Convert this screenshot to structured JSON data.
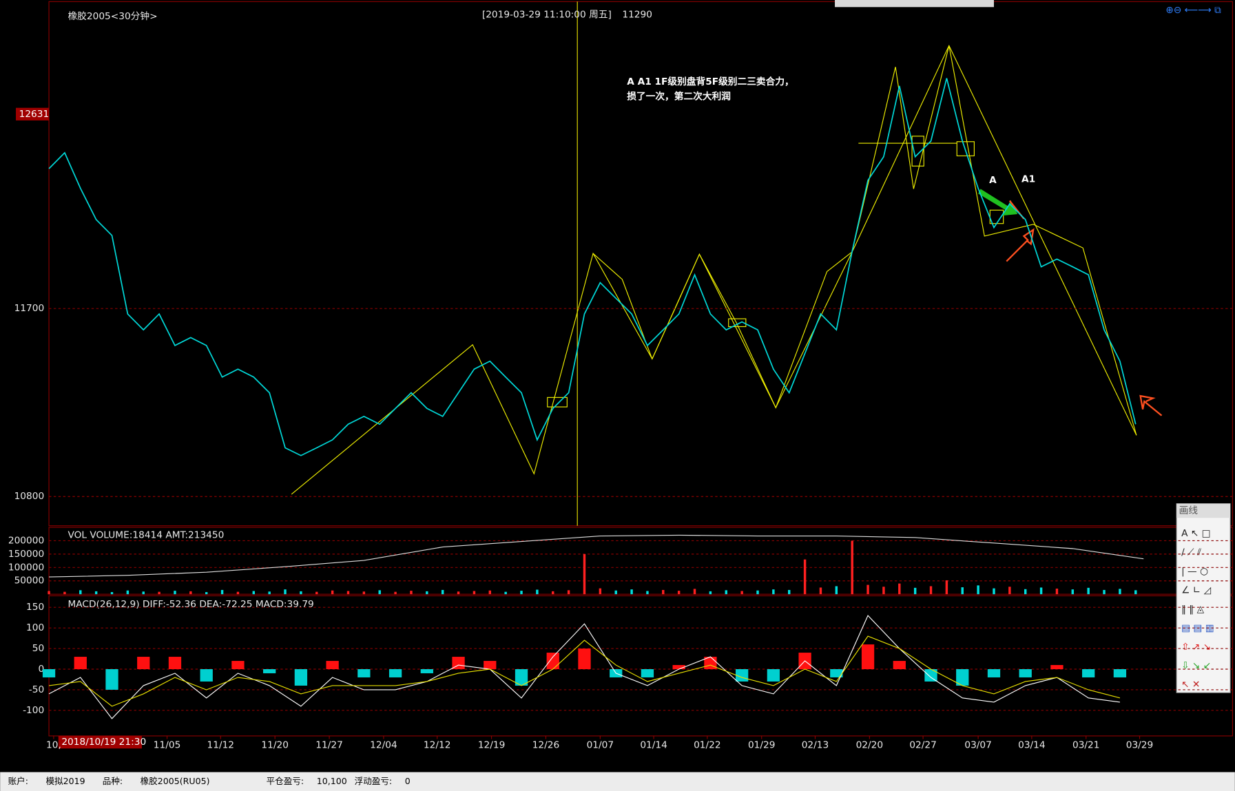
{
  "header": {
    "title": "橡胶2005<30分钟>",
    "cursor": "[2019-03-29  11:10:00 周五]",
    "cursor_price": "11290"
  },
  "annotation": {
    "lines": [
      "A A1 1F级别盘背5F级别二三卖合力，",
      "损了一次，第二次大利润"
    ],
    "labels": [
      "A",
      "A1"
    ]
  },
  "cursor_date": "2018/10/19 21:30",
  "toolbox": {
    "title": "画线"
  },
  "status_bar": {
    "items": [
      "账户:",
      "模拟2019",
      "品种:",
      "橡胶2005(RU05)",
      "平仓盈亏:",
      "10,100",
      "浮动盈亏:",
      "0"
    ]
  },
  "chart_data": [
    {
      "type": "line",
      "color": "#00d8d8",
      "ylim": [
        10660,
        13170
      ],
      "yticks": [
        10800,
        11700
      ],
      "xlim": [
        0,
        75.15
      ],
      "cursor_label": 12631,
      "values": [
        12370,
        12446,
        12276,
        12126,
        12050,
        11674,
        11598,
        11674,
        11523,
        11561,
        11523,
        11372,
        11410,
        11372,
        11297,
        11033,
        10996,
        11033,
        11071,
        11146,
        11184,
        11146,
        11222,
        11297,
        11222,
        11184,
        11297,
        11410,
        11448,
        11372,
        11297,
        11071,
        11222,
        11297,
        11674,
        11824,
        11749,
        11674,
        11523,
        11598,
        11674,
        11862,
        11674,
        11598,
        11636,
        11598,
        11410,
        11297,
        11485,
        11674,
        11598,
        11975,
        12314,
        12427,
        12766,
        12427,
        12502,
        12803,
        12502,
        12276,
        12088,
        12201,
        12126,
        11900,
        11937,
        11900,
        11862,
        11598,
        11448,
        11146
      ]
    },
    {
      "type": "bar",
      "title": "VOL  VOLUME:18414 AMT:213450",
      "up_color": "#ff2020",
      "down_color": "#00e0e0",
      "ylim": [
        0,
        250000
      ],
      "yticks": [
        50000,
        100000,
        150000,
        200000
      ],
      "xlim": [
        0,
        75.15
      ],
      "values": [
        12000,
        9000,
        15000,
        11000,
        8000,
        14000,
        10000,
        9000,
        13000,
        11000,
        8000,
        16000,
        9000,
        12000,
        10000,
        18000,
        11000,
        9000,
        14000,
        12000,
        10000,
        15000,
        9000,
        13000,
        11000,
        16000,
        10000,
        12000,
        14000,
        9000,
        13000,
        17000,
        11000,
        15000,
        150000,
        22000,
        14000,
        18000,
        12000,
        16000,
        13000,
        20000,
        11000,
        15000,
        12000,
        14000,
        18000,
        16000,
        130000,
        25000,
        30000,
        200000,
        35000,
        28000,
        40000,
        24000,
        30000,
        52000,
        26000,
        33000,
        22000,
        28000,
        19000,
        25000,
        21000,
        18000,
        24000,
        16000,
        20000,
        15000
      ],
      "line": {
        "color": "#e0e0e0",
        "x": [
          0,
          5,
          10,
          15,
          20,
          25,
          30,
          35,
          40,
          45,
          50,
          55,
          60,
          65,
          69.5
        ],
        "values": [
          64700,
          70600,
          82400,
          102900,
          126500,
          176500,
          197100,
          217600,
          220600,
          217600,
          217600,
          211800,
          191200,
          170600,
          132400
        ]
      }
    },
    {
      "type": "macd",
      "title": "MACD(26,12,9)  DIFF:-52.36 DEA:-72.25 MACD:39.79",
      "up_color": "#ff1010",
      "down_color": "#00d0d0",
      "diff_color": "#ffffff",
      "dea_color": "#e8e000",
      "ylim": [
        -162,
        178
      ],
      "yticks": [
        -100,
        -50,
        0,
        50,
        100,
        150
      ],
      "xlim": [
        0,
        75.15
      ],
      "x": [
        0,
        2,
        4,
        6,
        8,
        10,
        12,
        14,
        16,
        18,
        20,
        22,
        24,
        26,
        28,
        30,
        32,
        34,
        36,
        38,
        40,
        42,
        44,
        46,
        48,
        50,
        52,
        54,
        56,
        58,
        60,
        62,
        64,
        66,
        68
      ],
      "histogram": [
        -20,
        30,
        -50,
        30,
        30,
        -30,
        20,
        -10,
        -40,
        20,
        -20,
        -20,
        -10,
        30,
        20,
        -40,
        40,
        50,
        -20,
        -20,
        10,
        30,
        -30,
        -30,
        40,
        -20,
        60,
        20,
        -30,
        -40,
        -20,
        -20,
        10,
        -20,
        -20
      ],
      "diff": [
        -60,
        -20,
        -120,
        -40,
        -10,
        -70,
        -10,
        -40,
        -90,
        -20,
        -50,
        -50,
        -30,
        10,
        0,
        -70,
        30,
        110,
        -10,
        -40,
        0,
        30,
        -40,
        -60,
        20,
        -40,
        130,
        50,
        -20,
        -70,
        -80,
        -40,
        -20,
        -70,
        -80
      ],
      "dea": [
        -40,
        -30,
        -90,
        -60,
        -20,
        -50,
        -20,
        -30,
        -60,
        -40,
        -40,
        -40,
        -30,
        -10,
        0,
        -40,
        0,
        70,
        10,
        -30,
        -10,
        10,
        -20,
        -40,
        0,
        -30,
        80,
        50,
        0,
        -40,
        -60,
        -30,
        -20,
        -50,
        -70
      ],
      "xticks": [
        {
          "value": 0.3,
          "label": "10,"
        },
        {
          "value": 7.5,
          "label": "11/05"
        },
        {
          "value": 10.9,
          "label": "11/12"
        },
        {
          "value": 14.35,
          "label": "11/20"
        },
        {
          "value": 17.8,
          "label": "11/27"
        },
        {
          "value": 21.25,
          "label": "12/04"
        },
        {
          "value": 24.65,
          "label": "12/12"
        },
        {
          "value": 28.1,
          "label": "12/19"
        },
        {
          "value": 31.55,
          "label": "12/26"
        },
        {
          "value": 35,
          "label": "01/07"
        },
        {
          "value": 38.4,
          "label": "01/14"
        },
        {
          "value": 41.8,
          "label": "01/22"
        },
        {
          "value": 45.25,
          "label": "01/29"
        },
        {
          "value": 48.65,
          "label": "02/13"
        },
        {
          "value": 52.1,
          "label": "02/20"
        },
        {
          "value": 55.5,
          "label": "02/27"
        },
        {
          "value": 59,
          "label": "03/07"
        },
        {
          "value": 62.4,
          "label": "03/14"
        },
        {
          "value": 65.85,
          "label": "03/21"
        },
        {
          "value": 69.25,
          "label": "03/29"
        }
      ]
    }
  ]
}
